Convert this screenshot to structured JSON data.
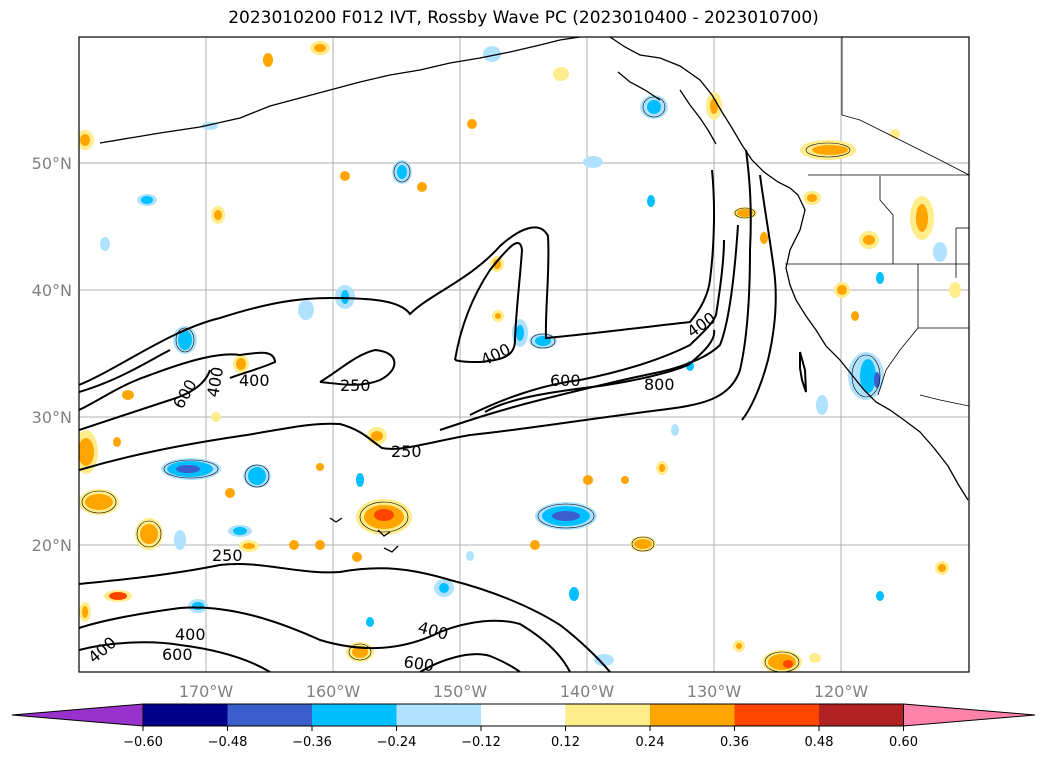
{
  "title": "2023010200 F012 IVT, Rossby Wave PC (2023010400 - 2023010700)",
  "map": {
    "lat_labels": [
      "50°N",
      "40°N",
      "30°N",
      "20°N"
    ],
    "lon_labels": [
      "170°W",
      "160°W",
      "150°W",
      "140°W",
      "130°W",
      "120°W"
    ],
    "contour_labels": [
      "250",
      "250",
      "250",
      "400",
      "400",
      "400",
      "400",
      "400",
      "400",
      "600",
      "600",
      "600",
      "600",
      "800"
    ]
  },
  "colorbar": {
    "colors": [
      "#9932cc",
      "#00008b",
      "#3a5fcd",
      "#00bfff",
      "#b0e2ff",
      "#ffffff",
      "#ffec8b",
      "#ffa500",
      "#ff4500",
      "#b22222",
      "#ff82ab"
    ],
    "tick_labels": [
      "−0.60",
      "−0.48",
      "−0.36",
      "−0.24",
      "−0.12",
      "0.12",
      "0.24",
      "0.36",
      "0.48",
      "0.60"
    ]
  }
}
